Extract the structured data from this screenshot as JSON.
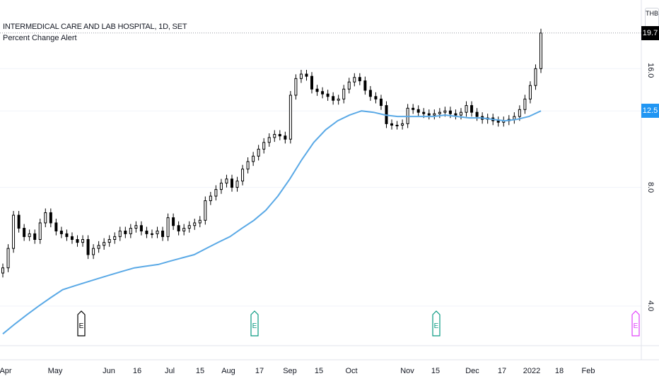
{
  "header": {
    "symbol_title": "INTERMEDICAL CARE AND LAB HOSPITAL, 1D, SET",
    "indicator_title": "Percent Change Alert",
    "currency": "THB"
  },
  "price_scale": {
    "last_price_label": "19.7",
    "ma_label": "12.5",
    "last_price_color": "#000000",
    "ma_color": "#2196f3"
  },
  "colors": {
    "ma_line": "#5aa9e6",
    "candle": "#000000",
    "grid": "#f0f3fa",
    "earnings_past": "#000000",
    "earnings_green": "#089981",
    "earnings_future": "#e040fb"
  },
  "chart_data": {
    "type": "line",
    "x_tick_labels": [
      "Apr",
      "May",
      "Jun",
      "16",
      "Jul",
      "15",
      "Aug",
      "17",
      "Sep",
      "15",
      "Oct",
      "Nov",
      "15",
      "Dec",
      "17",
      "2022",
      "18",
      "Feb"
    ],
    "y_tick_labels": [
      "4.0",
      "8.0",
      "16.0"
    ],
    "y_scale": "log",
    "ylim": [
      3.2,
      22
    ],
    "series": [
      {
        "kind": "price_candles",
        "close": [
          5.0,
          5.6,
          6.8,
          6.3,
          6.0,
          6.1,
          5.9,
          6.5,
          6.9,
          6.5,
          6.2,
          6.1,
          6.0,
          5.9,
          5.8,
          5.9,
          5.4,
          5.6,
          5.7,
          5.8,
          5.9,
          6.0,
          6.2,
          6.1,
          6.3,
          6.4,
          6.2,
          6.1,
          6.1,
          6.2,
          6.0,
          6.7,
          6.4,
          6.2,
          6.3,
          6.4,
          6.5,
          6.6,
          7.4,
          7.6,
          7.9,
          8.2,
          8.4,
          8.0,
          8.3,
          8.9,
          9.3,
          9.6,
          10.0,
          10.4,
          10.7,
          10.9,
          10.8,
          10.6,
          13.7,
          15.1,
          15.5,
          15.3,
          14.2,
          14.0,
          13.8,
          13.6,
          13.3,
          13.4,
          14.2,
          14.8,
          15.2,
          14.9,
          14.1,
          13.6,
          13.4,
          12.9,
          11.6,
          11.5,
          11.5,
          11.6,
          12.7,
          12.6,
          12.4,
          12.3,
          12.2,
          12.3,
          12.4,
          12.5,
          12.3,
          12.2,
          12.4,
          12.9,
          12.4,
          12.1,
          11.9,
          12.0,
          11.8,
          11.7,
          11.8,
          11.9,
          12.1,
          12.6,
          13.4,
          14.5,
          16.0,
          19.7
        ]
      },
      {
        "kind": "moving_average",
        "values": [
          3.4,
          3.6,
          3.8,
          4.0,
          4.2,
          4.4,
          4.5,
          4.6,
          4.7,
          4.8,
          4.9,
          5.0,
          5.05,
          5.1,
          5.2,
          5.3,
          5.4,
          5.6,
          5.8,
          6.0,
          6.3,
          6.6,
          7.0,
          7.6,
          8.4,
          9.4,
          10.4,
          11.2,
          11.8,
          12.2,
          12.5,
          12.4,
          12.2,
          12.1,
          12.1,
          12.1,
          12.1,
          12.2,
          12.1,
          12.0,
          12.0,
          11.9,
          11.8,
          11.9,
          12.1,
          12.5
        ]
      }
    ],
    "earnings_markers": [
      {
        "label": "E",
        "color": "past"
      },
      {
        "label": "E",
        "color": "green"
      },
      {
        "label": "E",
        "color": "green"
      },
      {
        "label": "E",
        "color": "future"
      }
    ]
  }
}
